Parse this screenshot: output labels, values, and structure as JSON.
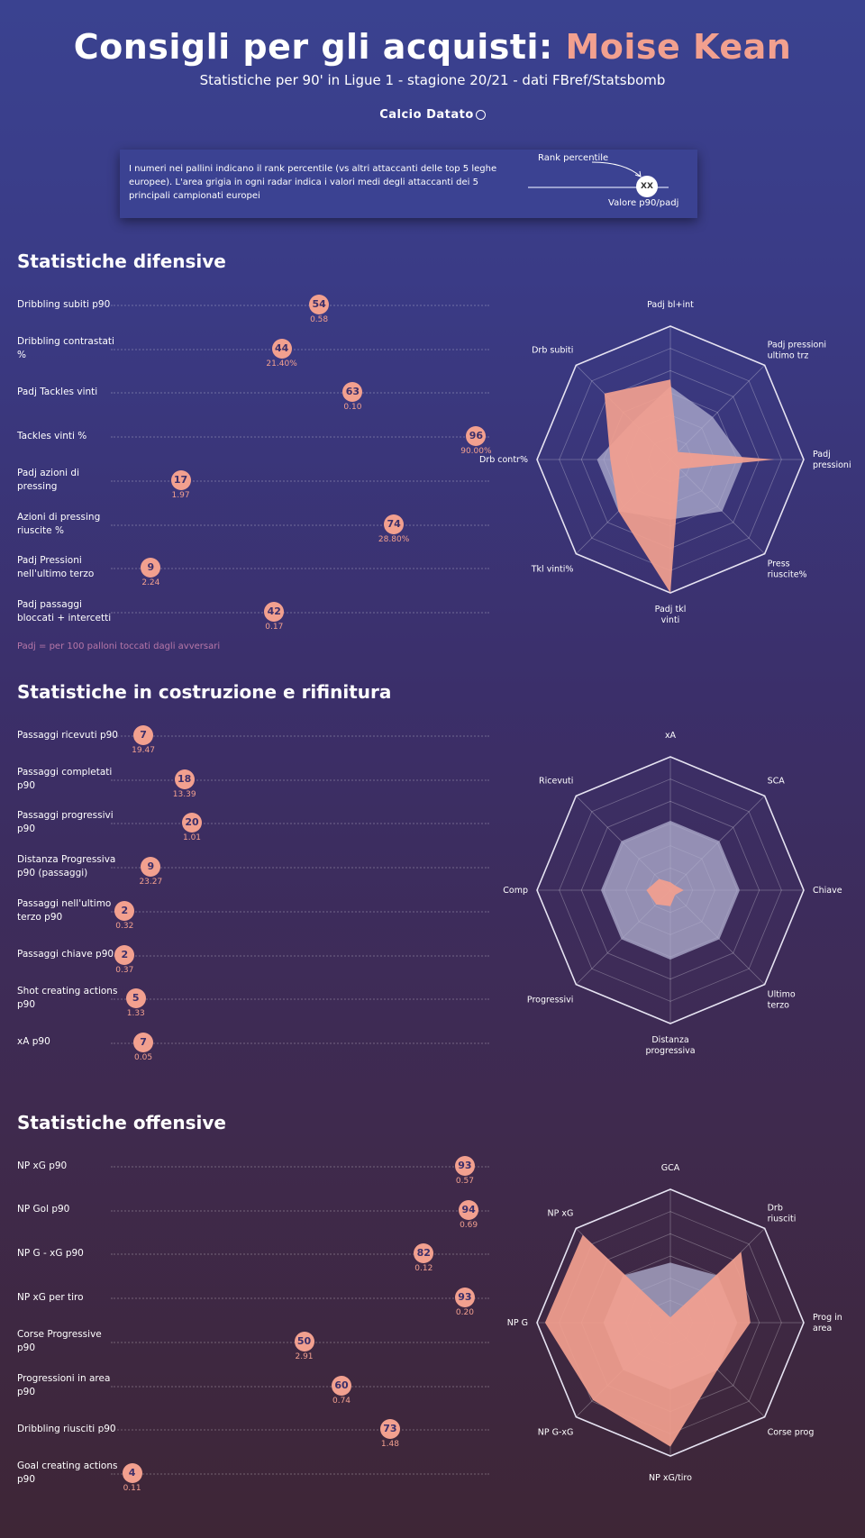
{
  "header": {
    "title_prefix": "Consigli per gli acquisti: ",
    "title_player": "Moise Kean",
    "subtitle": "Statistiche per 90' in Ligue 1 - stagione 20/21 - dati FBref/Statsbomb",
    "logo": "Calcio Datato"
  },
  "legend": {
    "text": "I numeri nei pallini indicano il rank percentile (vs altri attaccanti delle top 5 leghe europee). L'area grigia in ogni radar indica i valori medi degli attaccanti dei 5 principali campionati europei",
    "rank_label": "Rank percentile",
    "bubble": "XX",
    "value_label": "Valore p90/padj"
  },
  "colors": {
    "accent": "#f2a08f",
    "avg_area": "#b2b0d0"
  },
  "chart_data": [
    {
      "type": "dot_strip",
      "title": "Statistiche difensive",
      "note": "Padj = per 100 palloni toccati dagli avversari",
      "items": [
        {
          "label": "Dribbling subiti p90",
          "rank": 54,
          "value": "0.58"
        },
        {
          "label": "Dribbling contrastati %",
          "rank": 44,
          "value": "21.40%"
        },
        {
          "label": "Padj Tackles vinti",
          "rank": 63,
          "value": "0.10"
        },
        {
          "label": "Tackles vinti %",
          "rank": 96,
          "value": "90.00%"
        },
        {
          "label": "Padj azioni di pressing",
          "rank": 17,
          "value": "1.97"
        },
        {
          "label": "Azioni di pressing riuscite %",
          "rank": 74,
          "value": "28.80%"
        },
        {
          "label": "Padj Pressioni nell'ultimo terzo",
          "rank": 9,
          "value": "2.24"
        },
        {
          "label": "Padj passaggi bloccati + intercetti",
          "rank": 42,
          "value": "0.17"
        }
      ]
    },
    {
      "type": "radar",
      "axes": [
        "Padj bl+int",
        "Padj pressioni ultimo trz",
        "Padj pressioni",
        "Press riuscite%",
        "Padj tkl vinti",
        "Tkl vinti%",
        "Drb contr%",
        "Drb subiti"
      ],
      "player": [
        0.6,
        0.08,
        0.78,
        0.1,
        1.0,
        0.55,
        0.45,
        0.7
      ],
      "average": [
        0.55,
        0.45,
        0.55,
        0.55,
        0.45,
        0.55,
        0.55,
        0.4
      ]
    },
    {
      "type": "dot_strip",
      "title": "Statistiche in costruzione e rifinitura",
      "items": [
        {
          "label": "Passaggi ricevuti p90",
          "rank": 7,
          "value": "19.47"
        },
        {
          "label": "Passaggi completati p90",
          "rank": 18,
          "value": "13.39"
        },
        {
          "label": "Passaggi progressivi p90",
          "rank": 20,
          "value": "1.01"
        },
        {
          "label": "Distanza Progressiva p90 (passaggi)",
          "rank": 9,
          "value": "23.27"
        },
        {
          "label": "Passaggi nell'ultimo terzo p90",
          "rank": 2,
          "value": "0.32"
        },
        {
          "label": "Passaggi chiave p90",
          "rank": 2,
          "value": "0.37"
        },
        {
          "label": "Shot creating actions p90",
          "rank": 5,
          "value": "1.33"
        },
        {
          "label": "xA p90",
          "rank": 7,
          "value": "0.05"
        }
      ]
    },
    {
      "type": "radar",
      "axes": [
        "xA",
        "SCA",
        "Chiave",
        "Ultimo terzo",
        "Distanza progressiva",
        "Progressivi",
        "Comp",
        "Ricevuti"
      ],
      "player": [
        0.06,
        0.05,
        0.1,
        0.05,
        0.12,
        0.15,
        0.18,
        0.12
      ],
      "average": [
        0.52,
        0.52,
        0.52,
        0.52,
        0.52,
        0.52,
        0.52,
        0.52
      ]
    },
    {
      "type": "dot_strip",
      "title": "Statistiche offensive",
      "items": [
        {
          "label": "NP xG p90",
          "rank": 93,
          "value": "0.57"
        },
        {
          "label": "NP Gol p90",
          "rank": 94,
          "value": "0.69"
        },
        {
          "label": "NP G - xG p90",
          "rank": 82,
          "value": "0.12"
        },
        {
          "label": "NP xG per tiro",
          "rank": 93,
          "value": "0.20"
        },
        {
          "label": "Corse Progressive p90",
          "rank": 50,
          "value": "2.91"
        },
        {
          "label": "Progressioni in area p90",
          "rank": 60,
          "value": "0.74"
        },
        {
          "label": "Dribbling riusciti p90",
          "rank": 73,
          "value": "1.48"
        },
        {
          "label": "Goal creating actions p90",
          "rank": 4,
          "value": "0.11"
        }
      ]
    },
    {
      "type": "radar",
      "axes": [
        "GCA",
        "Drb riusciti",
        "Prog in area",
        "Corse prog",
        "NP xG/tiro",
        "NP G-xG",
        "NP G",
        "NP xG"
      ],
      "player": [
        0.04,
        0.75,
        0.6,
        0.5,
        0.93,
        0.82,
        0.94,
        0.93
      ],
      "average": [
        0.45,
        0.5,
        0.5,
        0.5,
        0.5,
        0.5,
        0.5,
        0.5
      ]
    }
  ]
}
